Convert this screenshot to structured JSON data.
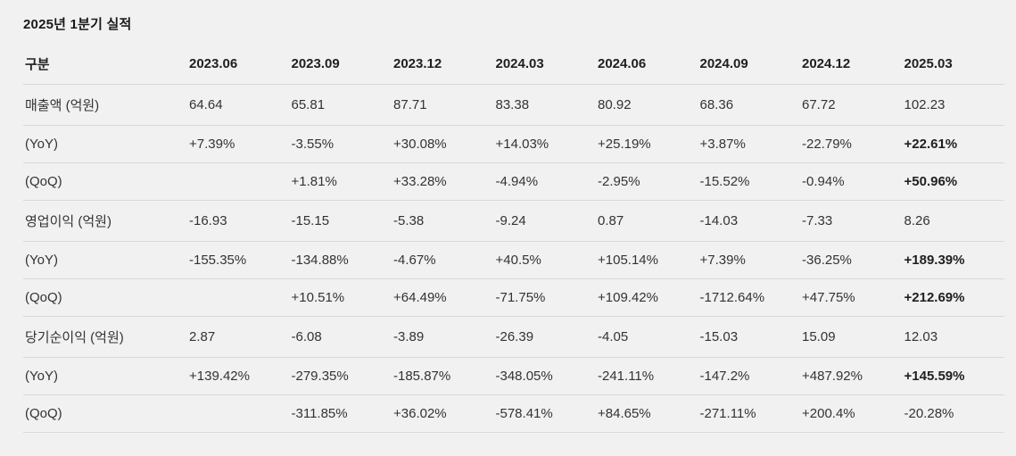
{
  "page": {
    "title": "2025년 1분기 실적"
  },
  "chart_data": {
    "type": "table",
    "title": "2025년 1분기 실적",
    "columns": [
      "구분",
      "2023.06",
      "2023.09",
      "2023.12",
      "2024.03",
      "2024.06",
      "2024.09",
      "2024.12",
      "2025.03"
    ],
    "rows": [
      {
        "label": "매출액 (억원)",
        "values": [
          "64.64",
          "65.81",
          "87.71",
          "83.38",
          "80.92",
          "68.36",
          "67.72",
          "102.23"
        ],
        "last_bold": false
      },
      {
        "label": "(YoY)",
        "values": [
          "+7.39%",
          "-3.55%",
          "+30.08%",
          "+14.03%",
          "+25.19%",
          "+3.87%",
          "-22.79%",
          "+22.61%"
        ],
        "last_bold": true
      },
      {
        "label": "(QoQ)",
        "values": [
          "",
          "+1.81%",
          "+33.28%",
          "-4.94%",
          "-2.95%",
          "-15.52%",
          "-0.94%",
          "+50.96%"
        ],
        "last_bold": true
      },
      {
        "label": "영업이익 (억원)",
        "values": [
          "-16.93",
          "-15.15",
          "-5.38",
          "-9.24",
          "0.87",
          "-14.03",
          "-7.33",
          "8.26"
        ],
        "last_bold": false
      },
      {
        "label": "(YoY)",
        "values": [
          "-155.35%",
          "-134.88%",
          "-4.67%",
          "+40.5%",
          "+105.14%",
          "+7.39%",
          "-36.25%",
          "+189.39%"
        ],
        "last_bold": true
      },
      {
        "label": "(QoQ)",
        "values": [
          "",
          "+10.51%",
          "+64.49%",
          "-71.75%",
          "+109.42%",
          "-1712.64%",
          "+47.75%",
          "+212.69%"
        ],
        "last_bold": true
      },
      {
        "label": "당기순이익 (억원)",
        "values": [
          "2.87",
          "-6.08",
          "-3.89",
          "-26.39",
          "-4.05",
          "-15.03",
          "15.09",
          "12.03"
        ],
        "last_bold": false
      },
      {
        "label": "(YoY)",
        "values": [
          "+139.42%",
          "-279.35%",
          "-185.87%",
          "-348.05%",
          "-241.11%",
          "-147.2%",
          "+487.92%",
          "+145.59%"
        ],
        "last_bold": true
      },
      {
        "label": "(QoQ)",
        "values": [
          "",
          "-311.85%",
          "+36.02%",
          "-578.41%",
          "+84.65%",
          "-271.11%",
          "+200.4%",
          "-20.28%"
        ],
        "last_bold": false
      }
    ],
    "colors": {
      "background": "#f1f1f1",
      "text": "#333333",
      "header_text": "#1f1f1f",
      "divider": "#d9d9d9"
    }
  }
}
